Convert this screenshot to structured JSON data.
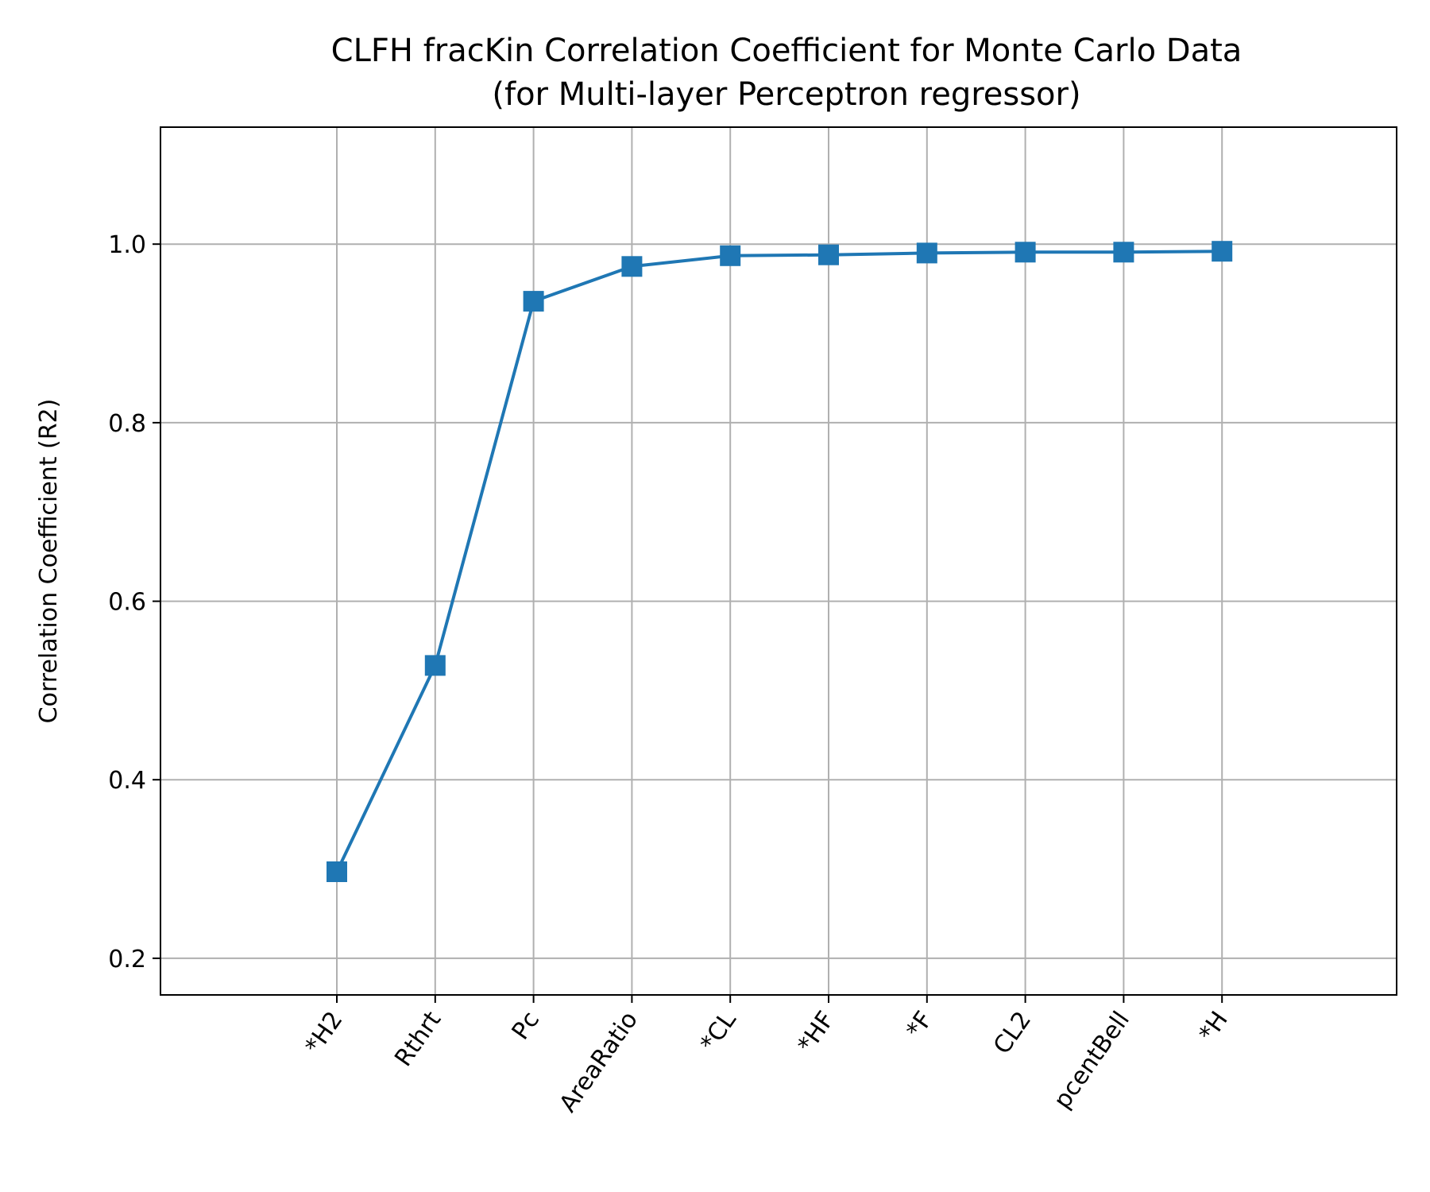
{
  "chart_data": {
    "type": "line",
    "title": "CLFH fracKin Correlation Coefficient for Monte Carlo Data",
    "subtitle": "(for Multi-layer Perceptron regressor)",
    "xlabel": "",
    "ylabel": "Correlation Coefficient (R2)",
    "categories": [
      "*H2",
      "Rthrt",
      "Pc",
      "AreaRatio",
      "*CL",
      "*HF",
      "*F",
      "CL2",
      "pcentBell",
      "*H"
    ],
    "series": [
      {
        "values": [
          0.297,
          0.528,
          0.936,
          0.975,
          0.987,
          0.988,
          0.99,
          0.991,
          0.991,
          0.992
        ],
        "color": "#1f77b4",
        "marker": "square"
      }
    ],
    "ylim": [
      0.159,
      1.131
    ],
    "yticks": [
      0.2,
      0.4,
      0.6,
      0.8,
      1.0
    ],
    "ytick_labels": [
      "0.2",
      "0.4",
      "0.6",
      "0.8",
      "1.0"
    ],
    "grid": true,
    "legend": false
  }
}
